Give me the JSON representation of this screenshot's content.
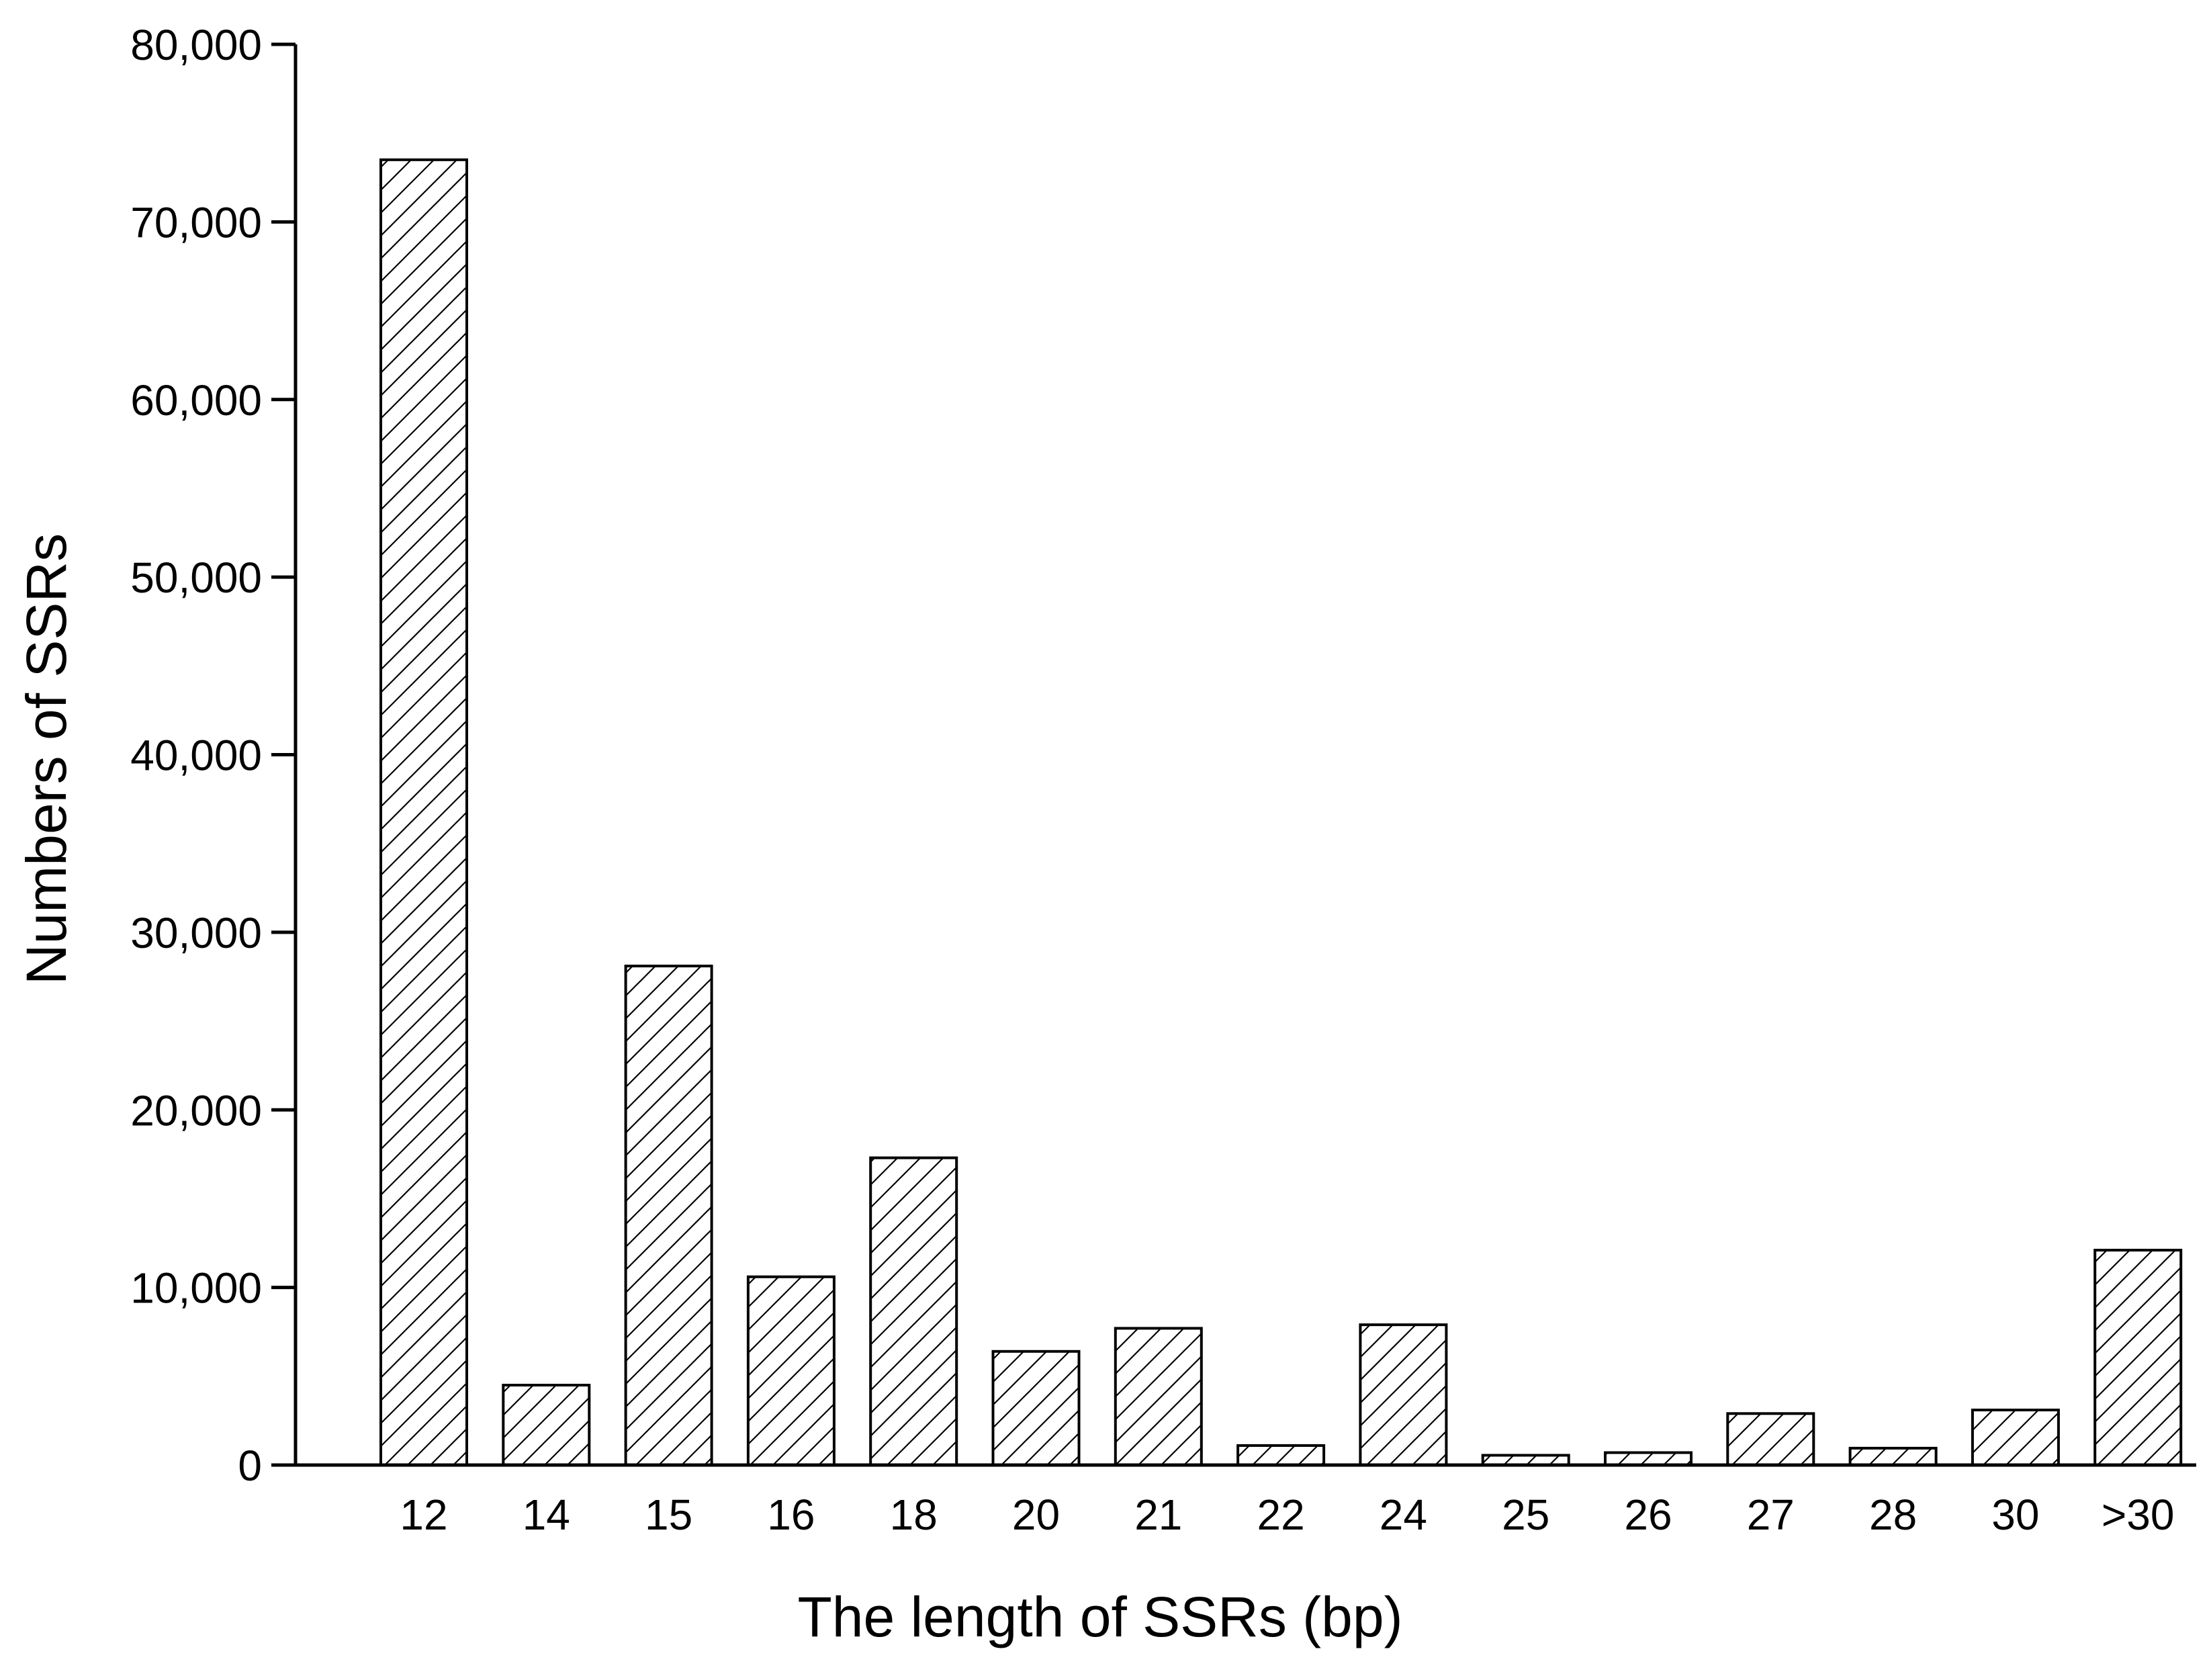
{
  "chart_data": {
    "type": "bar",
    "title": "",
    "xlabel": "The length of SSRs (bp)",
    "ylabel": "Numbers of SSRs",
    "categories": [
      "12",
      "14",
      "15",
      "16",
      "18",
      "20",
      "21",
      "22",
      "24",
      "25",
      "26",
      "27",
      "28",
      "30",
      ">30"
    ],
    "values": [
      73500,
      4500,
      28100,
      10600,
      17300,
      6400,
      7700,
      1100,
      7900,
      550,
      700,
      2900,
      950,
      3100,
      12100
    ],
    "ylim": [
      0,
      80000
    ],
    "yticks": [
      0,
      10000,
      20000,
      30000,
      40000,
      50000,
      60000,
      70000,
      80000
    ],
    "ytick_labels": [
      "0",
      "10,000",
      "20,000",
      "30,000",
      "40,000",
      "50,000",
      "60,000",
      "70,000",
      "80,000"
    ],
    "bar_fill": "hatched diagonal",
    "bar_color": "#000000",
    "grid": false,
    "legend": "none"
  }
}
